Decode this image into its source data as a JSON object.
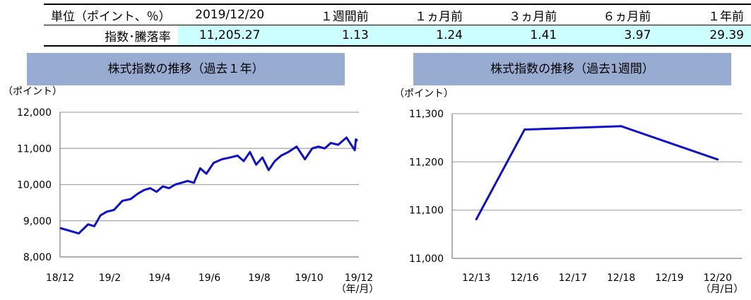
{
  "table": {
    "headers": [
      "単位（ポイント、％）",
      "2019/12/20",
      "１週間前",
      "１ヵ月前",
      "３ヵ月前",
      "６ヵ月前",
      "１年前"
    ],
    "row_label": "指数･騰落率",
    "values": [
      "11,205.27",
      "1.13",
      "1.24",
      "1.41",
      "3.97",
      "29.39"
    ]
  },
  "chart_data": [
    {
      "type": "line",
      "title": "株式指数の推移（過去１年）",
      "unit_label": "（ポイント）",
      "x_tick_labels": [
        "18/12",
        "19/2",
        "19/4",
        "19/6",
        "19/8",
        "19/10",
        "19/12"
      ],
      "x_unit": "（年/月）",
      "y_tick_labels": [
        "8,000",
        "9,000",
        "10,000",
        "11,000",
        "12,000"
      ],
      "ylim": [
        8000,
        12000
      ],
      "grid": true,
      "color": "#1010c8",
      "x": [
        "18/12",
        "18/12",
        "19/1",
        "19/1",
        "19/1",
        "19/1",
        "19/2",
        "19/2",
        "19/2",
        "19/3",
        "19/3",
        "19/3",
        "19/3",
        "19/4",
        "19/4",
        "19/4",
        "19/4",
        "19/5",
        "19/5",
        "19/5",
        "19/5",
        "19/6",
        "19/6",
        "19/6",
        "19/7",
        "19/7",
        "19/7",
        "19/7",
        "19/8",
        "19/8",
        "19/8",
        "19/8",
        "19/9",
        "19/9",
        "19/9",
        "19/10",
        "19/10",
        "19/10",
        "19/10",
        "19/11",
        "19/11",
        "19/11",
        "19/12",
        "19/12"
      ],
      "values": [
        8800,
        8650,
        8900,
        8850,
        9150,
        9250,
        9300,
        9550,
        9600,
        9750,
        9850,
        9900,
        9800,
        9950,
        9900,
        10000,
        10050,
        10100,
        10050,
        10450,
        10300,
        10600,
        10700,
        10750,
        10800,
        10650,
        10900,
        10550,
        10750,
        10400,
        10650,
        10800,
        10900,
        11050,
        10700,
        11000,
        11050,
        11000,
        11150,
        11100,
        11300,
        10950,
        11250,
        11205
      ]
    },
    {
      "type": "line",
      "title": "株式指数の推移（過去1週間）",
      "unit_label": "（ポイント）",
      "categories": [
        "12/13",
        "12/16",
        "12/17",
        "12/18",
        "12/19",
        "12/20"
      ],
      "x_unit": "（月/日）",
      "y_tick_labels": [
        "11,000",
        "11,100",
        "11,200",
        "11,300"
      ],
      "ylim": [
        11000,
        11300
      ],
      "grid": true,
      "color": "#1010c8",
      "x": [
        "12/13",
        "12/16",
        "12/18",
        "12/20"
      ],
      "values": [
        11081,
        11267,
        11274,
        11205
      ]
    }
  ]
}
